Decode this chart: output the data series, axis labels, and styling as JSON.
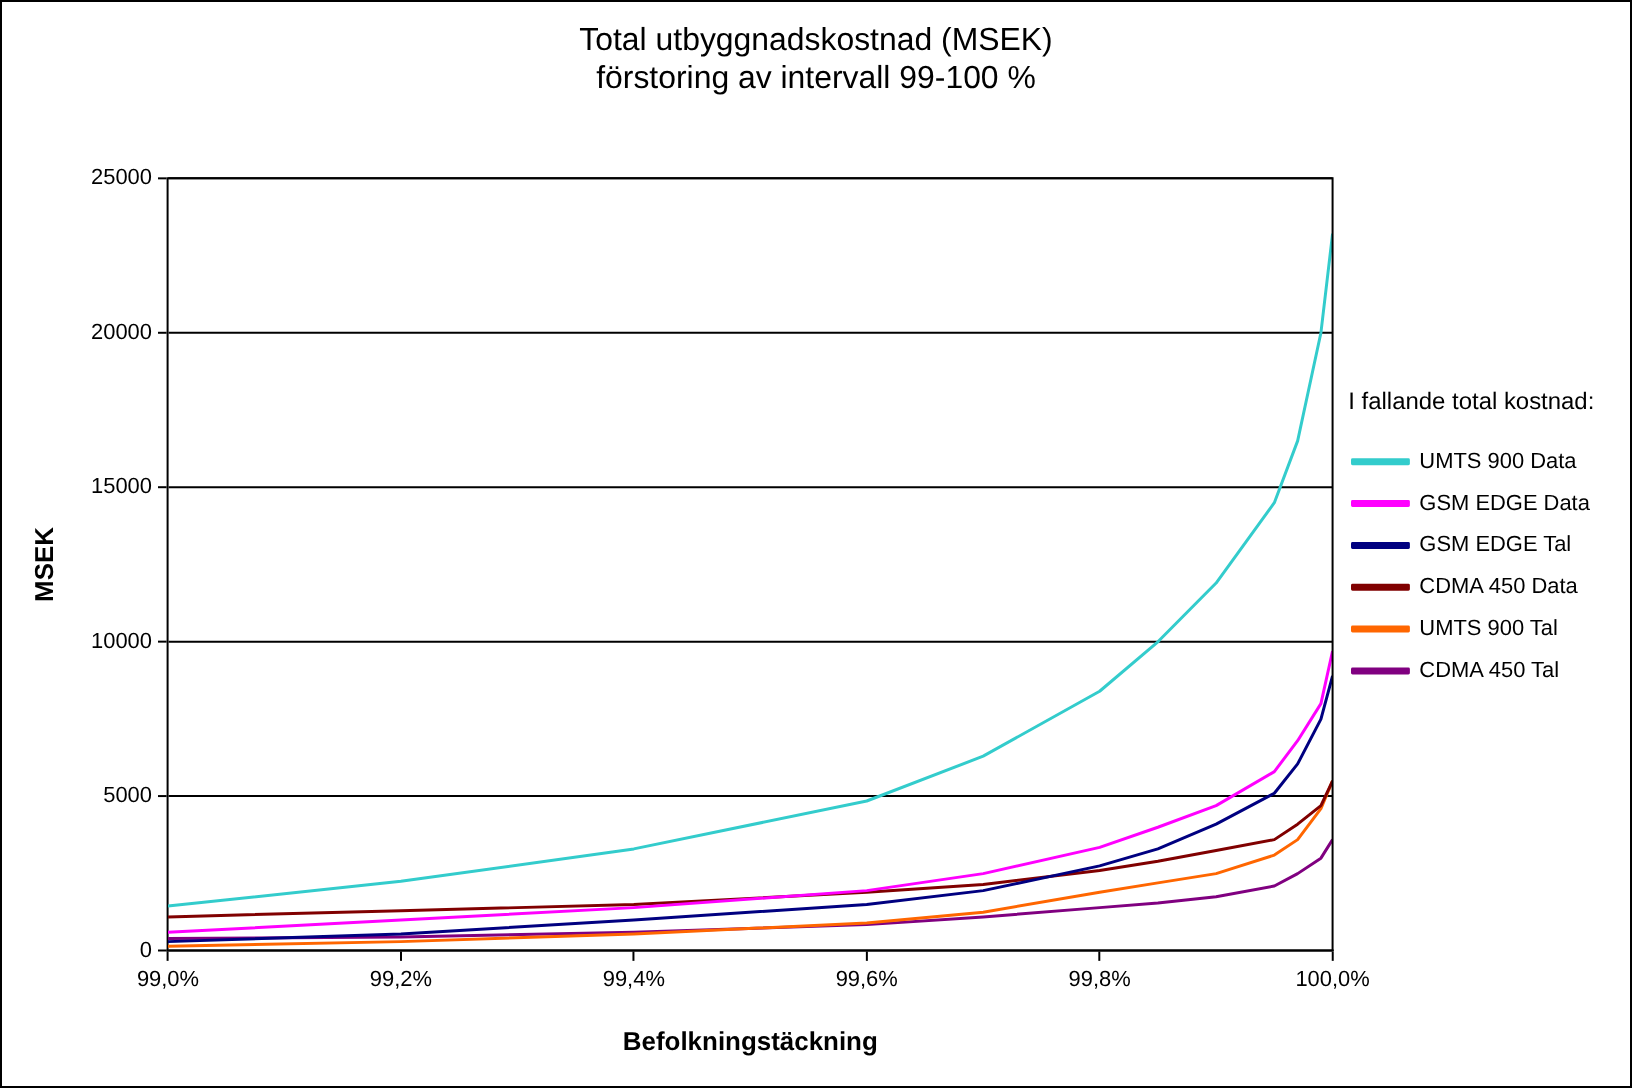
{
  "chart_data": {
    "type": "line",
    "title": "Total utbyggnadskostnad (MSEK)",
    "subtitle": "förstoring av intervall 99-100 %",
    "xlabel": "Befolkningstäckning",
    "ylabel": "MSEK",
    "legend_title": "I fallande total kostnad:",
    "x": [
      99.0,
      99.2,
      99.4,
      99.6,
      99.7,
      99.8,
      99.85,
      99.9,
      99.95,
      99.97,
      99.99,
      100.0
    ],
    "series": [
      {
        "name": "UMTS 900 Data",
        "color": "#33cccc",
        "values": [
          1450,
          2250,
          3300,
          4850,
          6300,
          8400,
          10000,
          11900,
          14500,
          16500,
          20000,
          23200
        ]
      },
      {
        "name": "GSM EDGE Data",
        "color": "#ff00ff",
        "values": [
          600,
          1000,
          1400,
          1950,
          2500,
          3350,
          4000,
          4700,
          5800,
          6800,
          8000,
          9700
        ]
      },
      {
        "name": "GSM EDGE Tal",
        "color": "#000080",
        "values": [
          300,
          550,
          1000,
          1500,
          1950,
          2750,
          3300,
          4100,
          5100,
          6050,
          7500,
          8900
        ]
      },
      {
        "name": "CDMA 450 Data",
        "color": "#800000",
        "values": [
          1100,
          1300,
          1500,
          1900,
          2150,
          2600,
          2900,
          3250,
          3600,
          4100,
          4700,
          5500
        ]
      },
      {
        "name": "UMTS 900 Tal",
        "color": "#ff6600",
        "values": [
          150,
          300,
          550,
          900,
          1250,
          1900,
          2200,
          2500,
          3100,
          3600,
          4600,
          5500
        ]
      },
      {
        "name": "CDMA 450 Tal",
        "color": "#800080",
        "values": [
          400,
          450,
          600,
          850,
          1100,
          1400,
          1550,
          1750,
          2100,
          2500,
          3000,
          3600
        ]
      }
    ],
    "xlim": [
      99.0,
      100.0
    ],
    "xticks": [
      {
        "value": 99.0,
        "label": "99,0%"
      },
      {
        "value": 99.2,
        "label": "99,2%"
      },
      {
        "value": 99.4,
        "label": "99,4%"
      },
      {
        "value": 99.6,
        "label": "99,6%"
      },
      {
        "value": 99.8,
        "label": "99,8%"
      },
      {
        "value": 100.0,
        "label": "100,0%"
      }
    ],
    "ylim": [
      0,
      25000
    ],
    "yticks": [
      0,
      5000,
      10000,
      15000,
      20000,
      25000
    ],
    "grid": "y",
    "legend": "right",
    "marker": "none",
    "line_style": "solid"
  }
}
